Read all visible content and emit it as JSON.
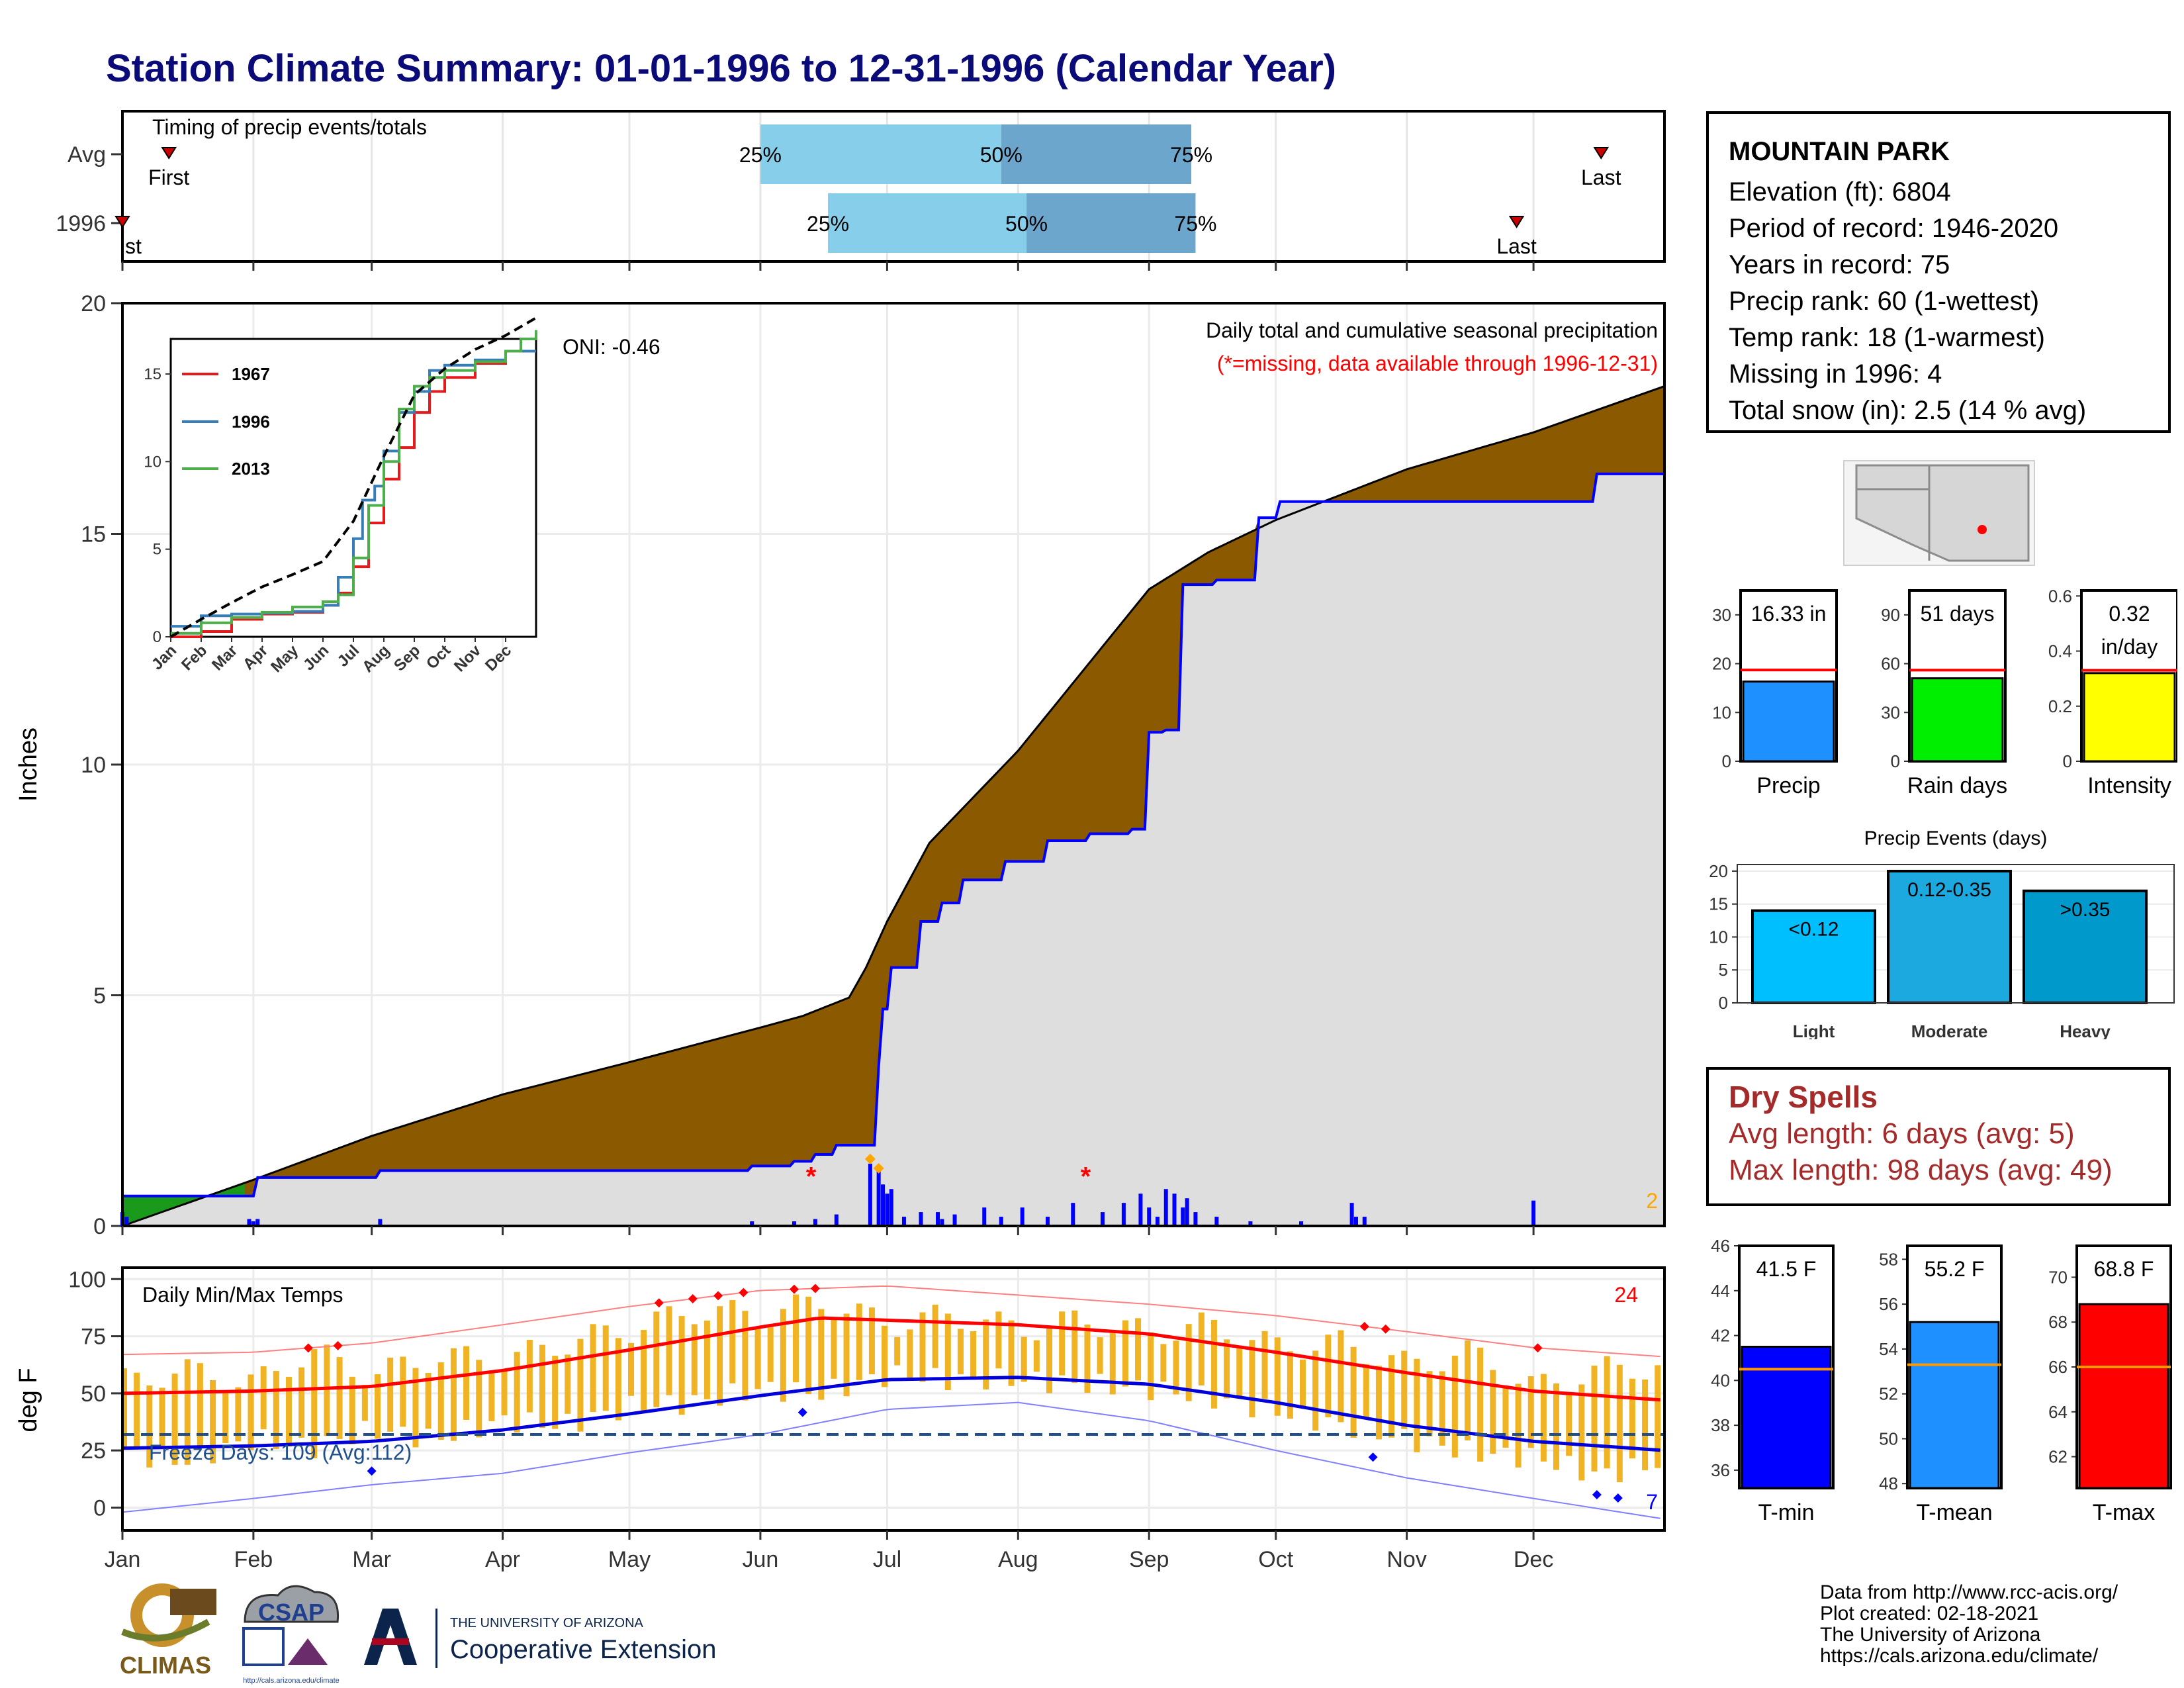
{
  "page": {
    "title": "Station Climate Summary: 01-01-1996 to 12-31-1996 (Calendar Year)"
  },
  "station": {
    "name": "MOUNTAIN PARK",
    "lines": [
      "Elevation (ft): 6804",
      "Period of record: 1946-2020",
      "Years in record: 75",
      "Precip rank: 60 (1-wettest)",
      "Temp rank: 18 (1-warmest)",
      "Missing in 1996: 4",
      "Total snow (in): 2.5 (14 % avg)"
    ]
  },
  "dry_spells": {
    "title": "Dry Spells",
    "avg": "Avg length: 6 days (avg: 5)",
    "max": "Max length: 98 days (avg: 49)"
  },
  "footer": {
    "lines": [
      "Data from http://www.rcc-acis.org/",
      "Plot created: 02-18-2021",
      "The University of Arizona",
      "https://cals.arizona.edu/climate/"
    ]
  },
  "logos": {
    "climas": "CLIMAS",
    "csap": "CSAP",
    "csap_url": "http://cals.arizona.edu/climate",
    "ua_small": "THE UNIVERSITY OF ARIZONA",
    "ua_big": "Cooperative Extension"
  },
  "colors": {
    "title": "#0a0a78",
    "cum_area": "#8b5a00",
    "obs_line": "#0000ff",
    "ahead_area": "#1a9a1a",
    "timing_light": "#87ceeb",
    "timing_dark": "#6ca6cd",
    "temp_bar": "#f0b323",
    "precip_bar": "#1e90ff",
    "rain_bar": "#00ee00",
    "intensity_bar": "#ffff00",
    "light_bar": "#00bfff",
    "moderate_bar": "#1ca9e0",
    "heavy_bar": "#0099cc",
    "tmin_bar": "#0000ff",
    "tmean_bar": "#1e90ff",
    "tmax_bar": "#ff0000"
  },
  "chart_data": [
    {
      "type": "timeline",
      "title": "Timing of precip events/totals",
      "rows": [
        "Avg",
        "1996"
      ],
      "quantile_labels": [
        "25%",
        "50%",
        "75%"
      ],
      "first_label": "First",
      "last_label": "Last",
      "first_label_clipped": "st",
      "avg": {
        "first": "01-12",
        "q25": "06-01",
        "q50": "07-28",
        "q75": "09-11",
        "last": "12-17"
      },
      "year": {
        "first": "01-01",
        "q25": "06-17",
        "q50": "08-03",
        "q75": "09-12",
        "last": "11-27"
      }
    },
    {
      "type": "area",
      "title": "Daily total and cumulative seasonal precipitation",
      "subtitle": "(*=missing, data available through 1996-12-31)",
      "ylabel": "Inches",
      "ylim": [
        0,
        20
      ],
      "yticks": [
        0,
        5,
        10,
        15,
        20
      ],
      "months": [
        "Jan",
        "Feb",
        "Mar",
        "Apr",
        "May",
        "Jun",
        "Jul",
        "Aug",
        "Sep",
        "Oct",
        "Nov",
        "Dec"
      ],
      "oni": "ONI: -0.46",
      "corner_count": "2",
      "avg_cumulative": {
        "day": [
          1,
          32,
          60,
          91,
          121,
          152,
          162,
          173,
          177,
          182,
          192,
          213,
          244,
          258,
          274,
          305,
          335,
          366
        ],
        "value": [
          0.0,
          1.0,
          1.95,
          2.85,
          3.55,
          4.3,
          4.55,
          4.95,
          5.6,
          6.6,
          8.3,
          10.3,
          13.8,
          14.6,
          15.3,
          16.4,
          17.2,
          18.2
        ]
      },
      "observed_cumulative": {
        "day": [
          1,
          31,
          33,
          62,
          150,
          160,
          165,
          170,
          178,
          180,
          181,
          183,
          190,
          195,
          200,
          210,
          220,
          230,
          240,
          244,
          248,
          252,
          260,
          270,
          275,
          350,
          366
        ],
        "value": [
          0.65,
          0.65,
          1.05,
          1.2,
          1.3,
          1.4,
          1.55,
          1.75,
          1.75,
          3.45,
          4.7,
          5.6,
          6.6,
          7.0,
          7.5,
          7.9,
          8.35,
          8.5,
          8.6,
          10.7,
          10.75,
          13.9,
          14.0,
          15.35,
          15.7,
          16.3,
          16.3
        ]
      },
      "daily_precip": {
        "day": [
          1,
          2,
          31,
          32,
          33,
          62,
          150,
          160,
          165,
          170,
          178,
          180,
          181,
          182,
          183,
          186,
          190,
          194,
          195,
          198,
          205,
          209,
          214,
          220,
          226,
          233,
          238,
          242,
          244,
          246,
          248,
          250,
          252,
          253,
          255,
          260,
          268,
          280,
          292,
          293,
          295,
          335
        ],
        "value": [
          0.3,
          0.2,
          0.15,
          0.1,
          0.15,
          0.15,
          0.1,
          0.1,
          0.15,
          0.25,
          1.35,
          1.2,
          0.9,
          0.7,
          0.8,
          0.2,
          0.3,
          0.3,
          0.15,
          0.25,
          0.4,
          0.2,
          0.4,
          0.2,
          0.5,
          0.3,
          0.5,
          0.7,
          0.4,
          0.2,
          0.8,
          0.7,
          0.4,
          0.6,
          0.3,
          0.2,
          0.1,
          0.1,
          0.5,
          0.2,
          0.2,
          0.55
        ]
      },
      "missing_markers_day": [
        164,
        229
      ]
    },
    {
      "type": "line",
      "title": "",
      "xlabels": [
        "Jan",
        "Feb",
        "Mar",
        "Apr",
        "May",
        "Jun",
        "Jul",
        "Aug",
        "Sep",
        "Oct",
        "Nov",
        "Dec"
      ],
      "ylim": [
        0,
        17
      ],
      "yticks": [
        0,
        5,
        10,
        15
      ],
      "series": [
        {
          "name": "1967",
          "color": "#e41a1c",
          "month": [
            0,
            1,
            2,
            3,
            4,
            5,
            5.5,
            6,
            6.5,
            7,
            7.5,
            8,
            8.5,
            9,
            10,
            11,
            11.5,
            12
          ],
          "value": [
            0,
            0.3,
            1.0,
            1.3,
            1.4,
            1.8,
            2.5,
            4.0,
            6.5,
            9.0,
            10.8,
            12.8,
            14.0,
            14.8,
            15.6,
            16.3,
            17.0,
            17.3
          ]
        },
        {
          "name": "1996",
          "color": "#377eb8",
          "month": [
            0,
            1,
            2,
            3,
            4,
            5,
            5.5,
            6,
            6.3,
            6.7,
            7,
            7.5,
            8,
            8.5,
            9,
            10,
            11,
            12
          ],
          "value": [
            0.6,
            1.2,
            1.3,
            1.35,
            1.45,
            1.8,
            3.4,
            5.6,
            7.8,
            8.6,
            10.6,
            12.8,
            14.0,
            15.2,
            15.5,
            15.8,
            16.3,
            16.3
          ]
        },
        {
          "name": "2013",
          "color": "#4daf4a",
          "month": [
            0,
            1,
            2,
            3,
            4,
            5,
            5.5,
            6,
            6.5,
            7,
            7.5,
            8,
            8.5,
            9,
            10,
            11,
            11.5,
            12
          ],
          "value": [
            0.2,
            0.8,
            1.1,
            1.4,
            1.7,
            2.0,
            2.4,
            4.5,
            7.5,
            10.0,
            13.0,
            14.3,
            14.8,
            15.2,
            15.7,
            16.3,
            17.0,
            17.5
          ]
        },
        {
          "name": "",
          "color": "#000000",
          "dashed": true,
          "month": [
            0,
            1,
            2,
            3,
            4,
            5,
            6,
            7,
            8,
            9,
            10,
            11,
            12
          ],
          "value": [
            0,
            1.0,
            1.95,
            2.85,
            3.55,
            4.3,
            6.6,
            10.3,
            13.8,
            15.3,
            16.4,
            17.2,
            18.2
          ]
        }
      ]
    },
    {
      "type": "bar",
      "title": "",
      "bars": [
        {
          "label": "Precip",
          "value": 16.33,
          "avg": 18.7,
          "ylim": [
            0,
            35
          ],
          "yticks": [
            0,
            10,
            20,
            30
          ],
          "value_label": "16.33 in",
          "color": "#1e90ff"
        },
        {
          "label": "Rain days",
          "value": 51,
          "avg": 56,
          "ylim": [
            0,
            105
          ],
          "yticks": [
            0,
            30,
            60,
            90
          ],
          "value_label": "51 days",
          "color": "#00ee00"
        },
        {
          "label": "Intensity",
          "value": 0.32,
          "avg": 0.33,
          "ylim": [
            0,
            0.62
          ],
          "yticks": [
            0.0,
            0.2,
            0.4,
            0.6
          ],
          "value_label": "0.32",
          "value_label2": "in/day",
          "color": "#ffff00"
        }
      ]
    },
    {
      "type": "bar",
      "title": "Precip Events (days)",
      "categories": [
        "Light",
        "Moderate",
        "Heavy"
      ],
      "values": [
        14,
        20,
        17
      ],
      "value_labels": [
        "<0.12",
        "0.12-0.35",
        ">0.35"
      ],
      "ylim": [
        0,
        21
      ],
      "yticks": [
        0,
        5,
        10,
        15,
        20
      ]
    },
    {
      "type": "line",
      "title": "Daily Min/Max Temps",
      "ylabel": "deg F",
      "ylim": [
        -10,
        105
      ],
      "yticks": [
        0,
        25,
        50,
        75,
        100
      ],
      "months": [
        "Jan",
        "Feb",
        "Mar",
        "Apr",
        "May",
        "Jun",
        "Jul",
        "Aug",
        "Sep",
        "Oct",
        "Nov",
        "Dec"
      ],
      "freeze_label": "Freeze Days: 109 (Avg:112)",
      "freeze_line": 32,
      "record_high_count": "24",
      "record_low_count": "7",
      "avg_max": {
        "day": [
          1,
          32,
          60,
          91,
          121,
          152,
          166,
          182,
          213,
          244,
          274,
          305,
          335,
          366
        ],
        "value": [
          50,
          51,
          53,
          60,
          69,
          79,
          83,
          82,
          80,
          76,
          68,
          59,
          51,
          47
        ]
      },
      "avg_min": {
        "day": [
          1,
          32,
          60,
          91,
          121,
          152,
          182,
          213,
          244,
          274,
          305,
          335,
          366
        ],
        "value": [
          26,
          27,
          29,
          34,
          41,
          49,
          56,
          57,
          54,
          46,
          36,
          29,
          25
        ]
      },
      "record_max": {
        "day": [
          1,
          32,
          60,
          91,
          121,
          152,
          182,
          213,
          244,
          274,
          305,
          335,
          366
        ],
        "value": [
          67,
          68,
          72,
          80,
          88,
          95,
          97,
          93,
          89,
          84,
          77,
          70,
          66
        ]
      },
      "record_min": {
        "day": [
          1,
          32,
          60,
          91,
          121,
          152,
          182,
          213,
          244,
          274,
          305,
          335,
          366
        ],
        "value": [
          -2,
          4,
          10,
          15,
          24,
          32,
          43,
          46,
          38,
          25,
          13,
          4,
          -5
        ]
      },
      "obs_max": {
        "day": [
          1,
          15,
          32,
          45,
          60,
          75,
          91,
          105,
          121,
          136,
          152,
          166,
          182,
          197,
          213,
          228,
          244,
          258,
          274,
          289,
          305,
          320,
          335,
          350,
          366
        ],
        "value": [
          55,
          60,
          54,
          68,
          58,
          66,
          64,
          72,
          78,
          86,
          84,
          90,
          80,
          84,
          78,
          82,
          76,
          80,
          70,
          72,
          62,
          68,
          52,
          60,
          62
        ]
      },
      "obs_min": {
        "day": [
          1,
          15,
          32,
          45,
          60,
          75,
          91,
          105,
          121,
          136,
          152,
          166,
          182,
          197,
          213,
          228,
          244,
          258,
          274,
          289,
          305,
          320,
          335,
          350,
          366
        ],
        "value": [
          24,
          20,
          30,
          26,
          34,
          30,
          38,
          36,
          44,
          46,
          52,
          50,
          58,
          56,
          56,
          54,
          52,
          48,
          42,
          36,
          30,
          24,
          22,
          14,
          20
        ]
      }
    },
    {
      "type": "bar",
      "title": "",
      "bars": [
        {
          "label": "T-min",
          "value": 41.5,
          "avg": 40.5,
          "ylim": [
            35.2,
            46
          ],
          "yticks": [
            36,
            38,
            40,
            42,
            44,
            46
          ],
          "value_label": "41.5 F",
          "color": "#0000ff"
        },
        {
          "label": "T-mean",
          "value": 55.2,
          "avg": 53.3,
          "ylim": [
            47.8,
            58.6
          ],
          "yticks": [
            48,
            50,
            52,
            54,
            56,
            58
          ],
          "value_label": "55.2 F",
          "color": "#1e90ff"
        },
        {
          "label": "T-max",
          "value": 68.8,
          "avg": 66.0,
          "ylim": [
            60.6,
            71.4
          ],
          "yticks": [
            62,
            64,
            66,
            68,
            70
          ],
          "value_label": "68.8 F",
          "color": "#ff0000"
        }
      ]
    }
  ]
}
